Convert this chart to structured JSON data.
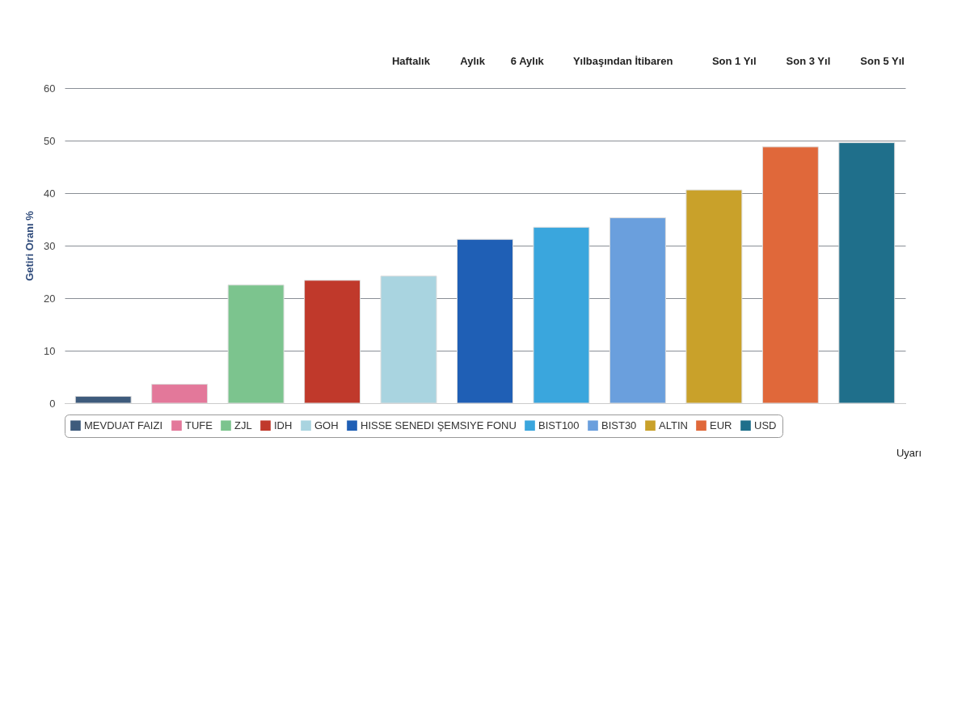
{
  "chart_data": {
    "type": "bar",
    "categories": [
      null
    ],
    "series": [
      {
        "name": "MEVDUAT FAIZI",
        "color": "#3e5b7c",
        "values": [
          1.3
        ]
      },
      {
        "name": "TUFE",
        "color": "#e3789a",
        "values": [
          3.6
        ]
      },
      {
        "name": "ZJL",
        "color": "#7cc48e",
        "values": [
          22.5
        ]
      },
      {
        "name": "IDH",
        "color": "#c0392b",
        "values": [
          23.4
        ]
      },
      {
        "name": "GOH",
        "color": "#a9d4e0",
        "values": [
          24.2
        ]
      },
      {
        "name": "HISSE SENEDI ŞEMSIYE FONU",
        "color": "#1f5fb5",
        "values": [
          31.2
        ]
      },
      {
        "name": "BIST100",
        "color": "#3aa6dd",
        "values": [
          33.5
        ]
      },
      {
        "name": "BIST30",
        "color": "#6a9fdd",
        "values": [
          35.3
        ]
      },
      {
        "name": "ALTIN",
        "color": "#c9a12a",
        "values": [
          40.6
        ]
      },
      {
        "name": "EUR",
        "color": "#e0683a",
        "values": [
          48.8
        ]
      },
      {
        "name": "USD",
        "color": "#1f6f8b",
        "values": [
          49.6
        ]
      }
    ],
    "ylabel": "Getiri Oranı %",
    "ylim": [
      0,
      60
    ],
    "yticks": [
      0,
      10,
      20,
      30,
      40,
      50,
      60
    ],
    "grid": "y",
    "legend": "bottom",
    "tick_labels": "y",
    "annotations": [
      "Haftalık",
      "Aylık",
      "6 Aylık",
      "Yılbaşından İtibaren",
      "Son 1 Yıl",
      "Son 3 Yıl",
      "Son 5 Yıl",
      "Uyarı"
    ]
  }
}
